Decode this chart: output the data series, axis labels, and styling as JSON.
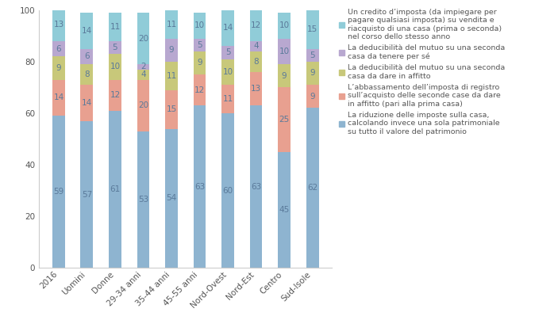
{
  "categories": [
    "2016",
    "Uomini",
    "Donne",
    "29-34 anni",
    "35-44 anni",
    "45-55 anni",
    "Nord-Ovest",
    "Nord-Est",
    "Centro",
    "Sud-Isole"
  ],
  "series": {
    "blue": [
      59,
      57,
      61,
      53,
      54,
      63,
      60,
      63,
      45,
      62
    ],
    "salmon": [
      14,
      14,
      12,
      20,
      15,
      12,
      11,
      13,
      25,
      9
    ],
    "olive": [
      9,
      8,
      10,
      4,
      11,
      9,
      10,
      8,
      9,
      9
    ],
    "purple": [
      6,
      6,
      5,
      2,
      9,
      5,
      5,
      4,
      10,
      5
    ],
    "lightblue": [
      13,
      14,
      11,
      20,
      11,
      10,
      14,
      12,
      10,
      15
    ]
  },
  "colors": {
    "blue": "#8eb4d0",
    "salmon": "#e8a090",
    "olive": "#c8c87a",
    "purple": "#b8a8d0",
    "lightblue": "#90ccd8"
  },
  "legend_labels": [
    "Un credito d’imposta (da impiegare per\npagare qualsiasi imposta) su vendita e\nriacquisto di una casa (prima o seconda)\nnel corso dello stesso anno",
    "La deducibilità del mutuo su una seconda\ncasa da tenere per sé",
    "La deducibilità del mutuo su una seconda\ncasa da dare in affitto",
    "L’abbassamento dell’imposta di registro\nsull’acquisto delle seconde case da dare\nin affitto (pari alla prima casa)",
    "La riduzione delle imposte sulla casa,\ncalcolando invece una sola patrimoniale\nsu tutto il valore del patrimonio"
  ],
  "ylim": [
    0,
    100
  ],
  "yticks": [
    0,
    20,
    40,
    60,
    80,
    100
  ],
  "bar_width": 0.45,
  "text_color": "#5a7a9a",
  "label_color": "#5a7a9a",
  "axis_color": "#cccccc",
  "font_size": 7.5,
  "legend_font_size": 6.8
}
